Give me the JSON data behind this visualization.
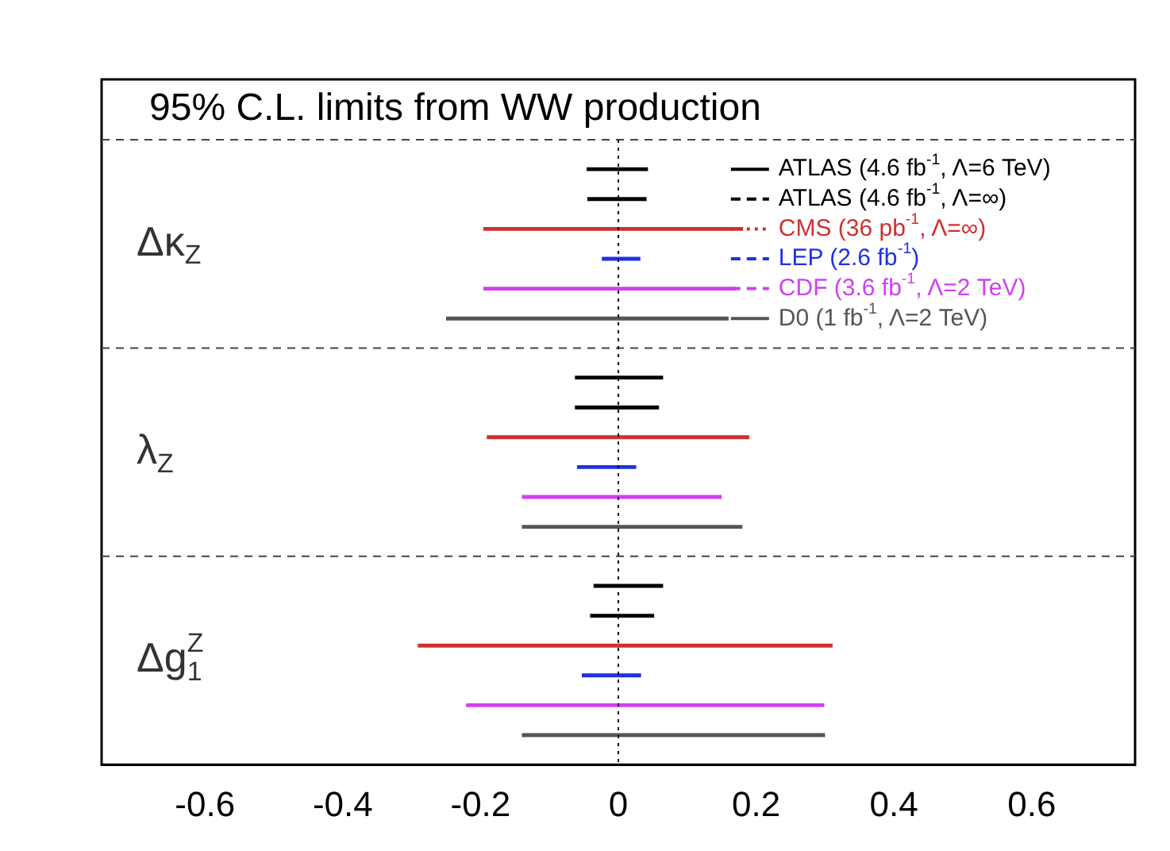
{
  "chart_data": {
    "type": "bar",
    "orientation": "horizontal",
    "title": "95% C.L. limits from WW production",
    "categories": [
      "Δκ$_{Z}$",
      "λ$_{Z}$",
      "Δg$^{Z}$$_{1}$"
    ],
    "series": [
      {
        "name": "ATLAS (4.6 fb$^{-1}$, Λ=6 TeV)",
        "color": "#000000",
        "line_style": "solid",
        "base": [
          -0.046,
          -0.063,
          -0.036
        ],
        "values": [
          0.089,
          0.128,
          0.101
        ]
      },
      {
        "name": "ATLAS (4.6 fb$^{-1}$, Λ=∞)",
        "color": "#000000",
        "line_style": "dashed",
        "base": [
          -0.045,
          -0.063,
          -0.041
        ],
        "values": [
          0.086,
          0.122,
          0.093
        ]
      },
      {
        "name": "CMS (36 pb$^{-1}$, Λ=∞)",
        "color": "#d03030",
        "line_style": "dotted",
        "base": [
          -0.196,
          -0.191,
          -0.291
        ],
        "values": [
          0.377,
          0.381,
          0.602
        ]
      },
      {
        "name": "LEP (2.6 fb$^{-1}$)",
        "color": "#2030e0",
        "line_style": "dashed",
        "base": [
          -0.024,
          -0.06,
          -0.053
        ],
        "values": [
          0.056,
          0.086,
          0.086
        ]
      },
      {
        "name": "CDF (3.6 fb$^{-1}$, Λ=2 TeV)",
        "color": "#d040f0",
        "line_style": "dashed",
        "base": [
          -0.196,
          -0.14,
          -0.221
        ],
        "values": [
          0.367,
          0.29,
          0.52
        ]
      },
      {
        "name": "D0 (1 fb$^{-1}$, Λ=2 TeV)",
        "color": "#555555",
        "line_style": "solid",
        "base": [
          -0.25,
          -0.14,
          -0.14
        ],
        "values": [
          0.41,
          0.32,
          0.44
        ]
      }
    ],
    "xlim": [
      -0.75,
      0.75
    ],
    "xticks": [
      -0.6,
      -0.4,
      -0.2,
      0,
      0.2,
      0.4,
      0.6
    ],
    "ref_lines": [
      {
        "axis": "x",
        "value": 0,
        "line_style": "dotted",
        "color": "#000000"
      }
    ],
    "grid": "y",
    "legend": "top right"
  }
}
